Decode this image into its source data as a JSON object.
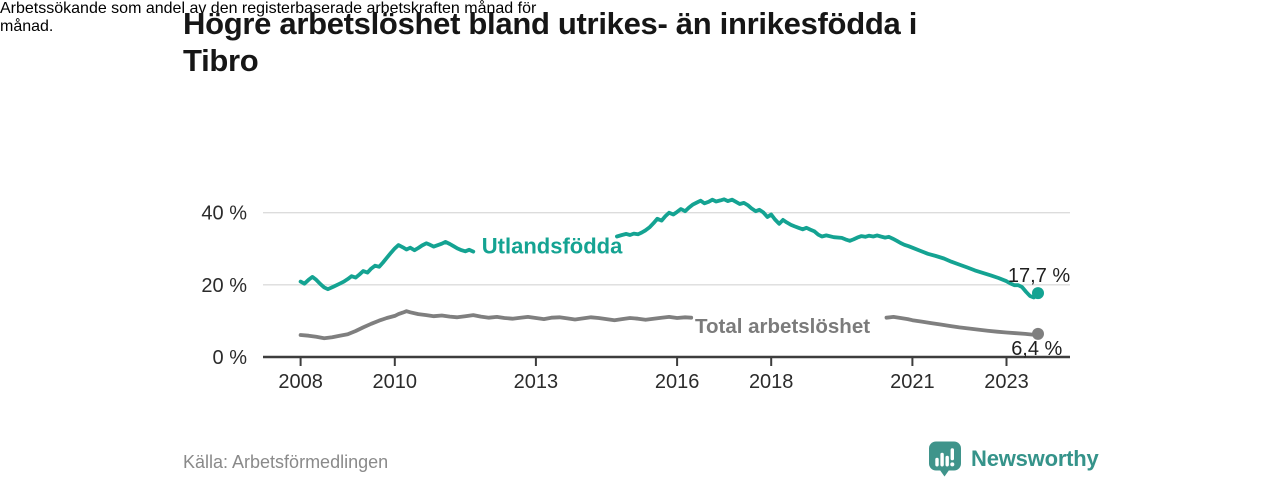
{
  "header": {
    "title_line1": "Högre arbetslöshet bland utrikes- än inrikesfödda i",
    "title_line2": "Tibro",
    "subtitle_line1": "Arbetssökande som andel av den registerbaserade arbetskraften månad för",
    "subtitle_line2": "månad."
  },
  "footer": {
    "source": "Källa: Arbetsförmedlingen",
    "brand": "Newsworthy"
  },
  "colors": {
    "accent_teal": "#14a392",
    "series_gray": "#7f7f7f",
    "grid": "#dcdcdc",
    "axis": "#3d3d3d",
    "tick_text": "#2b2b2b",
    "value_text": "#1f1f1f",
    "logo_teal": "#3f948b"
  },
  "chart_data": {
    "type": "line",
    "title": "Högre arbetslöshet bland utrikes- än inrikesfödda i Tibro",
    "subtitle": "Arbetssökande som andel av den registerbaserade arbetskraften månad för månad.",
    "xlabel": "",
    "ylabel": "",
    "x_range": [
      2007.2,
      2024.35
    ],
    "y_range": [
      0,
      46
    ],
    "x_ticks": [
      2008,
      2010,
      2013,
      2016,
      2018,
      2021,
      2023
    ],
    "y_ticks": [
      0,
      20,
      40
    ],
    "y_tick_suffix": " %",
    "grid_values": [
      20,
      40
    ],
    "legend_position": "inline-labels",
    "series": [
      {
        "name": "Utlandsfödda",
        "slug": "utlandsfodda",
        "color": "#14a392",
        "end_label": "17,7 %",
        "end_value": 17.7,
        "segments": [
          [
            [
              2008.0,
              20.9
            ],
            [
              2008.08,
              20.3
            ],
            [
              2008.17,
              21.4
            ],
            [
              2008.25,
              22.2
            ],
            [
              2008.33,
              21.4
            ],
            [
              2008.42,
              20.2
            ],
            [
              2008.5,
              19.3
            ],
            [
              2008.58,
              18.8
            ],
            [
              2008.7,
              19.5
            ],
            [
              2008.83,
              20.3
            ],
            [
              2008.92,
              20.9
            ],
            [
              2009.0,
              21.6
            ],
            [
              2009.08,
              22.4
            ],
            [
              2009.17,
              22.0
            ],
            [
              2009.25,
              22.9
            ],
            [
              2009.33,
              23.8
            ],
            [
              2009.42,
              23.4
            ],
            [
              2009.5,
              24.5
            ],
            [
              2009.58,
              25.3
            ],
            [
              2009.67,
              25.0
            ],
            [
              2009.75,
              26.2
            ],
            [
              2009.83,
              27.5
            ],
            [
              2009.92,
              28.9
            ],
            [
              2010.0,
              30.1
            ],
            [
              2010.08,
              31.0
            ],
            [
              2010.17,
              30.4
            ],
            [
              2010.25,
              29.8
            ],
            [
              2010.33,
              30.3
            ],
            [
              2010.42,
              29.6
            ],
            [
              2010.5,
              30.2
            ],
            [
              2010.58,
              30.9
            ],
            [
              2010.67,
              31.5
            ],
            [
              2010.75,
              31.1
            ],
            [
              2010.83,
              30.6
            ],
            [
              2010.92,
              31.0
            ],
            [
              2011.0,
              31.4
            ],
            [
              2011.08,
              31.9
            ],
            [
              2011.17,
              31.3
            ],
            [
              2011.25,
              30.7
            ],
            [
              2011.33,
              30.1
            ],
            [
              2011.42,
              29.6
            ],
            [
              2011.5,
              29.3
            ],
            [
              2011.58,
              29.7
            ],
            [
              2011.67,
              29.2
            ]
          ],
          [
            [
              2014.72,
              33.4
            ],
            [
              2014.83,
              33.8
            ],
            [
              2014.92,
              34.1
            ],
            [
              2015.0,
              33.8
            ],
            [
              2015.08,
              34.2
            ],
            [
              2015.17,
              34.0
            ],
            [
              2015.25,
              34.5
            ],
            [
              2015.33,
              35.1
            ],
            [
              2015.42,
              36.0
            ],
            [
              2015.5,
              37.1
            ],
            [
              2015.58,
              38.3
            ],
            [
              2015.67,
              37.8
            ],
            [
              2015.75,
              39.0
            ],
            [
              2015.83,
              40.0
            ],
            [
              2015.92,
              39.5
            ],
            [
              2016.0,
              40.2
            ],
            [
              2016.08,
              41.0
            ],
            [
              2016.17,
              40.4
            ],
            [
              2016.25,
              41.4
            ],
            [
              2016.33,
              42.2
            ],
            [
              2016.42,
              42.8
            ],
            [
              2016.5,
              43.3
            ],
            [
              2016.58,
              42.6
            ],
            [
              2016.67,
              43.0
            ],
            [
              2016.75,
              43.6
            ],
            [
              2016.83,
              43.1
            ],
            [
              2016.92,
              43.4
            ],
            [
              2017.0,
              43.7
            ],
            [
              2017.08,
              43.2
            ],
            [
              2017.17,
              43.6
            ],
            [
              2017.25,
              43.0
            ],
            [
              2017.33,
              42.4
            ],
            [
              2017.42,
              42.7
            ],
            [
              2017.5,
              42.1
            ],
            [
              2017.58,
              41.2
            ],
            [
              2017.67,
              40.4
            ],
            [
              2017.75,
              40.8
            ],
            [
              2017.83,
              40.1
            ],
            [
              2017.92,
              38.8
            ],
            [
              2018.0,
              39.5
            ],
            [
              2018.08,
              38.1
            ],
            [
              2018.17,
              36.9
            ],
            [
              2018.25,
              38.0
            ],
            [
              2018.33,
              37.3
            ],
            [
              2018.42,
              36.6
            ],
            [
              2018.5,
              36.2
            ],
            [
              2018.58,
              35.8
            ],
            [
              2018.67,
              35.4
            ],
            [
              2018.75,
              35.8
            ],
            [
              2018.83,
              35.3
            ],
            [
              2018.92,
              34.8
            ],
            [
              2019.0,
              33.9
            ],
            [
              2019.08,
              33.4
            ],
            [
              2019.17,
              33.7
            ],
            [
              2019.33,
              33.2
            ],
            [
              2019.5,
              33.0
            ],
            [
              2019.58,
              32.6
            ],
            [
              2019.67,
              32.2
            ],
            [
              2019.75,
              32.6
            ],
            [
              2019.83,
              33.1
            ],
            [
              2019.92,
              33.5
            ],
            [
              2020.0,
              33.3
            ],
            [
              2020.08,
              33.6
            ],
            [
              2020.17,
              33.4
            ],
            [
              2020.25,
              33.7
            ],
            [
              2020.33,
              33.4
            ],
            [
              2020.42,
              33.1
            ],
            [
              2020.5,
              33.3
            ],
            [
              2020.58,
              32.8
            ],
            [
              2020.67,
              32.2
            ],
            [
              2020.75,
              31.6
            ],
            [
              2020.83,
              31.1
            ],
            [
              2020.92,
              30.7
            ],
            [
              2021.0,
              30.3
            ],
            [
              2021.17,
              29.4
            ],
            [
              2021.33,
              28.6
            ],
            [
              2021.5,
              28.0
            ],
            [
              2021.67,
              27.3
            ],
            [
              2021.83,
              26.4
            ],
            [
              2022.0,
              25.6
            ],
            [
              2022.17,
              24.8
            ],
            [
              2022.33,
              24.0
            ],
            [
              2022.5,
              23.3
            ],
            [
              2022.67,
              22.6
            ],
            [
              2022.83,
              21.9
            ],
            [
              2023.0,
              21.0
            ],
            [
              2023.08,
              20.4
            ],
            [
              2023.17,
              19.9
            ],
            [
              2023.25,
              19.9
            ],
            [
              2023.33,
              19.4
            ],
            [
              2023.42,
              18.0
            ],
            [
              2023.5,
              16.9
            ],
            [
              2023.58,
              16.5
            ],
            [
              2023.67,
              17.7
            ]
          ]
        ]
      },
      {
        "name": "Total arbetslöshet",
        "slug": "total-arbetsloshet",
        "color": "#7f7f7f",
        "end_label": "6,4 %",
        "end_value": 6.4,
        "segments": [
          [
            [
              2008.0,
              6.1
            ],
            [
              2008.17,
              5.9
            ],
            [
              2008.33,
              5.6
            ],
            [
              2008.5,
              5.2
            ],
            [
              2008.67,
              5.5
            ],
            [
              2008.83,
              5.9
            ],
            [
              2009.0,
              6.3
            ],
            [
              2009.17,
              7.2
            ],
            [
              2009.33,
              8.2
            ],
            [
              2009.5,
              9.2
            ],
            [
              2009.67,
              10.1
            ],
            [
              2009.83,
              10.8
            ],
            [
              2010.0,
              11.4
            ],
            [
              2010.08,
              11.9
            ],
            [
              2010.17,
              12.3
            ],
            [
              2010.25,
              12.7
            ],
            [
              2010.33,
              12.4
            ],
            [
              2010.5,
              11.9
            ],
            [
              2010.67,
              11.6
            ],
            [
              2010.83,
              11.3
            ],
            [
              2011.0,
              11.5
            ],
            [
              2011.17,
              11.2
            ],
            [
              2011.33,
              11.0
            ],
            [
              2011.5,
              11.3
            ],
            [
              2011.67,
              11.6
            ],
            [
              2011.83,
              11.2
            ],
            [
              2012.0,
              10.9
            ],
            [
              2012.17,
              11.1
            ],
            [
              2012.33,
              10.8
            ],
            [
              2012.5,
              10.6
            ],
            [
              2012.67,
              10.9
            ],
            [
              2012.83,
              11.1
            ],
            [
              2013.0,
              10.8
            ],
            [
              2013.17,
              10.5
            ],
            [
              2013.33,
              10.9
            ],
            [
              2013.5,
              11.0
            ],
            [
              2013.67,
              10.7
            ],
            [
              2013.83,
              10.4
            ],
            [
              2014.0,
              10.7
            ],
            [
              2014.17,
              11.0
            ],
            [
              2014.33,
              10.8
            ],
            [
              2014.5,
              10.5
            ],
            [
              2014.67,
              10.2
            ],
            [
              2014.83,
              10.5
            ],
            [
              2015.0,
              10.8
            ],
            [
              2015.17,
              10.6
            ],
            [
              2015.33,
              10.3
            ],
            [
              2015.5,
              10.6
            ],
            [
              2015.67,
              10.9
            ],
            [
              2015.83,
              11.1
            ],
            [
              2016.0,
              10.8
            ],
            [
              2016.17,
              11.0
            ],
            [
              2016.3,
              10.9
            ]
          ],
          [
            [
              2020.45,
              10.9
            ],
            [
              2020.6,
              11.1
            ],
            [
              2020.75,
              10.8
            ],
            [
              2020.9,
              10.5
            ],
            [
              2021.0,
              10.2
            ],
            [
              2021.2,
              9.8
            ],
            [
              2021.4,
              9.4
            ],
            [
              2021.6,
              9.0
            ],
            [
              2021.8,
              8.6
            ],
            [
              2022.0,
              8.2
            ],
            [
              2022.2,
              7.9
            ],
            [
              2022.4,
              7.6
            ],
            [
              2022.6,
              7.3
            ],
            [
              2022.8,
              7.0
            ],
            [
              2023.0,
              6.8
            ],
            [
              2023.2,
              6.6
            ],
            [
              2023.4,
              6.4
            ],
            [
              2023.55,
              6.2
            ],
            [
              2023.67,
              6.4
            ]
          ]
        ]
      }
    ],
    "annotations": [
      {
        "text": "Utlandsfödda",
        "x": 2011.85,
        "v": 30.8,
        "color": "#14a392",
        "anchor": "start",
        "size": 22,
        "weight": 700,
        "name": "series-label-utlandsfodda"
      },
      {
        "text": "Total arbetslöshet",
        "x": 2016.38,
        "v": 8.6,
        "color": "#7b7b7b",
        "anchor": "start",
        "size": 20.5,
        "weight": 700,
        "name": "series-label-total-arbetsloshet"
      },
      {
        "text": "17,7 %",
        "x": 2023.03,
        "v": 22.7,
        "color": "#1f1f1f",
        "anchor": "start",
        "size": 20,
        "weight": 400,
        "name": "value-label-utlandsfodda"
      },
      {
        "text": "6,4 %",
        "x": 2023.1,
        "v": 2.5,
        "color": "#1f1f1f",
        "anchor": "start",
        "size": 20,
        "weight": 400,
        "name": "value-label-total-arbetsloshet"
      }
    ]
  }
}
